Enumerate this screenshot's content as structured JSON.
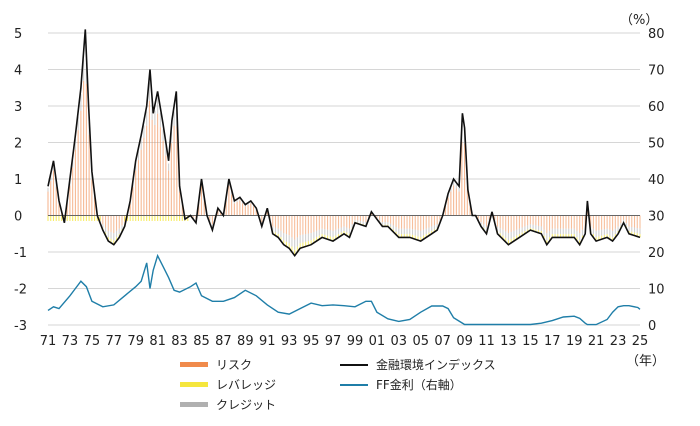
{
  "chart_data": {
    "type": "line",
    "title": "",
    "left_axis": {
      "ylim": [
        -3,
        5
      ],
      "ticks": [
        "5",
        "4",
        "3",
        "2",
        "1",
        "0",
        "-1",
        "-2",
        "-3"
      ]
    },
    "right_axis": {
      "label": "（%）",
      "ylim": [
        0,
        80
      ],
      "ticks": [
        "80",
        "70",
        "60",
        "50",
        "40",
        "30",
        "20",
        "10",
        "0"
      ]
    },
    "x_axis": {
      "unit_label": "（年）",
      "ticks": [
        "71",
        "73",
        "75",
        "77",
        "79",
        "81",
        "83",
        "85",
        "87",
        "89",
        "91",
        "93",
        "95",
        "97",
        "99",
        "01",
        "03",
        "05",
        "07",
        "09",
        "11",
        "13",
        "15",
        "17",
        "19",
        "21",
        "23",
        "25"
      ]
    },
    "fci": {
      "name": "金融環境インデックス",
      "x": [
        1971,
        1971.5,
        1972,
        1972.5,
        1973,
        1973.5,
        1974,
        1974.4,
        1974.7,
        1975,
        1975.5,
        1976,
        1976.5,
        1977,
        1977.5,
        1978,
        1978.5,
        1979,
        1979.5,
        1980,
        1980.3,
        1980.6,
        1981,
        1981.5,
        1982,
        1982.3,
        1982.7,
        1983,
        1983.5,
        1984,
        1984.5,
        1985,
        1985.5,
        1986,
        1986.5,
        1987,
        1987.5,
        1988,
        1988.5,
        1989,
        1989.5,
        1990,
        1990.5,
        1991,
        1991.5,
        1992,
        1992.5,
        1993,
        1993.5,
        1994,
        1995,
        1996,
        1997,
        1998,
        1998.5,
        1999,
        2000,
        2000.5,
        2001,
        2001.5,
        2002,
        2003,
        2004,
        2005,
        2006,
        2006.5,
        2007,
        2007.5,
        2008,
        2008.5,
        2008.8,
        2009,
        2009.3,
        2009.7,
        2010,
        2010.5,
        2011,
        2011.5,
        2012,
        2013,
        2014,
        2015,
        2016,
        2016.5,
        2017,
        2018,
        2019,
        2019.5,
        2020,
        2020.2,
        2020.5,
        2021,
        2022,
        2022.5,
        2023,
        2023.5,
        2024,
        2025
      ],
      "values": [
        0.8,
        1.5,
        0.4,
        -0.2,
        1.0,
        2.2,
        3.5,
        5.1,
        3.0,
        1.2,
        0.0,
        -0.4,
        -0.7,
        -0.8,
        -0.6,
        -0.3,
        0.4,
        1.5,
        2.2,
        3.0,
        4.0,
        2.8,
        3.4,
        2.5,
        1.5,
        2.6,
        3.4,
        0.8,
        -0.1,
        0.0,
        -0.2,
        1.0,
        0.0,
        -0.4,
        0.2,
        0.0,
        1.0,
        0.4,
        0.5,
        0.3,
        0.4,
        0.2,
        -0.3,
        0.2,
        -0.5,
        -0.6,
        -0.8,
        -0.9,
        -1.1,
        -0.9,
        -0.8,
        -0.6,
        -0.7,
        -0.5,
        -0.6,
        -0.2,
        -0.3,
        0.1,
        -0.1,
        -0.3,
        -0.3,
        -0.6,
        -0.6,
        -0.7,
        -0.5,
        -0.4,
        0.0,
        0.6,
        1.0,
        0.8,
        2.8,
        2.4,
        0.7,
        0.0,
        0.0,
        -0.3,
        -0.5,
        0.1,
        -0.5,
        -0.8,
        -0.6,
        -0.4,
        -0.5,
        -0.8,
        -0.6,
        -0.6,
        -0.6,
        -0.8,
        -0.5,
        0.4,
        -0.5,
        -0.7,
        -0.6,
        -0.7,
        -0.5,
        -0.2,
        -0.5,
        -0.6
      ]
    },
    "fed_funds": {
      "name": "FF金利（右軸）",
      "x": [
        1971,
        1971.5,
        1972,
        1973,
        1973.5,
        1974,
        1974.5,
        1975,
        1976,
        1977,
        1978,
        1979,
        1979.5,
        1980,
        1980.3,
        1980.6,
        1981,
        1981.5,
        1982,
        1982.5,
        1983,
        1984,
        1984.5,
        1985,
        1986,
        1987,
        1988,
        1989,
        1990,
        1991,
        1992,
        1993,
        1994,
        1995,
        1996,
        1997,
        1998,
        1999,
        2000,
        2000.5,
        2001,
        2002,
        2003,
        2004,
        2005,
        2006,
        2007,
        2007.5,
        2008,
        2009,
        2010,
        2015,
        2016,
        2017,
        2018,
        2019,
        2019.5,
        2020,
        2020.2,
        2021,
        2022,
        2022.5,
        2023,
        2023.5,
        2024,
        2024.8,
        2025
      ],
      "values": [
        4.0,
        5.0,
        4.5,
        8.0,
        10.0,
        12.0,
        10.5,
        6.5,
        5.0,
        5.5,
        8.0,
        10.5,
        12.0,
        17.0,
        10.0,
        15.0,
        19.0,
        16.0,
        13.0,
        9.5,
        9.0,
        10.5,
        11.5,
        8.0,
        6.5,
        6.5,
        7.5,
        9.5,
        8.0,
        5.5,
        3.5,
        3.0,
        4.5,
        6.0,
        5.3,
        5.5,
        5.3,
        5.0,
        6.5,
        6.5,
        3.5,
        1.7,
        1.0,
        1.5,
        3.5,
        5.2,
        5.2,
        4.5,
        2.0,
        0.15,
        0.15,
        0.15,
        0.5,
        1.2,
        2.2,
        2.4,
        1.8,
        0.5,
        0.1,
        0.1,
        1.5,
        3.5,
        5.0,
        5.3,
        5.3,
        4.8,
        4.3
      ]
    },
    "legend": {
      "risk": {
        "label": "リスク",
        "color": "#f08a4b"
      },
      "leverage": {
        "label": "レバレッジ",
        "color": "#f5e63d"
      },
      "credit": {
        "label": "クレジット",
        "color": "#b0b0b0"
      },
      "fci": {
        "label": "金融環境インデックス",
        "color": "#111111"
      },
      "ff": {
        "label": "FF金利（右軸）",
        "color": "#1f7ea8"
      }
    }
  }
}
